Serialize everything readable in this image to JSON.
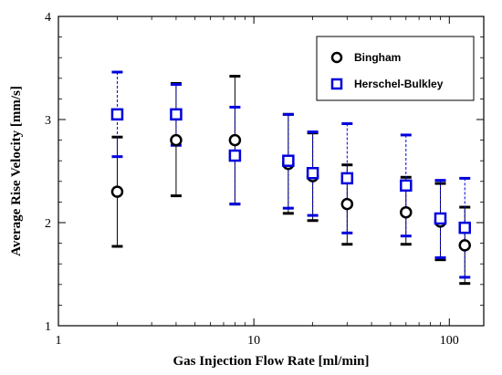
{
  "chart_data": {
    "type": "scatter",
    "title": "",
    "xlabel": "Gas Injection Flow Rate [ml/min]",
    "ylabel": "Average Rise Velocity [mm/s]",
    "xscale": "log",
    "xlim": [
      1,
      150
    ],
    "ylim": [
      1,
      4
    ],
    "xticks": [
      1,
      10,
      100
    ],
    "xtick_labels": [
      "1",
      "10",
      "100"
    ],
    "yticks": [
      1,
      2,
      3,
      4
    ],
    "ytick_labels": [
      "1",
      "2",
      "3",
      "4"
    ],
    "grid": false,
    "legend_position": "top-right",
    "series": [
      {
        "name": "Bingham",
        "marker": "circle",
        "color": "#000000",
        "x": [
          2,
          4,
          8,
          15,
          20,
          30,
          60,
          90,
          120
        ],
        "y": [
          2.3,
          2.8,
          2.8,
          2.57,
          2.45,
          2.18,
          2.1,
          2.01,
          1.78
        ],
        "err_low": [
          1.77,
          2.26,
          2.18,
          2.09,
          2.02,
          1.79,
          1.79,
          1.64,
          1.41
        ],
        "err_high": [
          2.83,
          3.35,
          3.42,
          3.05,
          2.87,
          2.56,
          2.44,
          2.38,
          2.15
        ]
      },
      {
        "name": "Herschel-Bulkley",
        "marker": "square",
        "color": "#0000dd",
        "x": [
          2,
          4,
          8,
          15,
          20,
          30,
          60,
          90,
          120
        ],
        "y": [
          3.05,
          3.05,
          2.65,
          2.6,
          2.48,
          2.43,
          2.36,
          2.04,
          1.95
        ],
        "err_low": [
          2.64,
          2.75,
          2.18,
          2.14,
          2.07,
          1.9,
          1.87,
          1.66,
          1.47
        ],
        "err_high": [
          3.46,
          3.34,
          3.12,
          3.05,
          2.88,
          2.96,
          2.85,
          2.41,
          2.43
        ]
      }
    ]
  }
}
